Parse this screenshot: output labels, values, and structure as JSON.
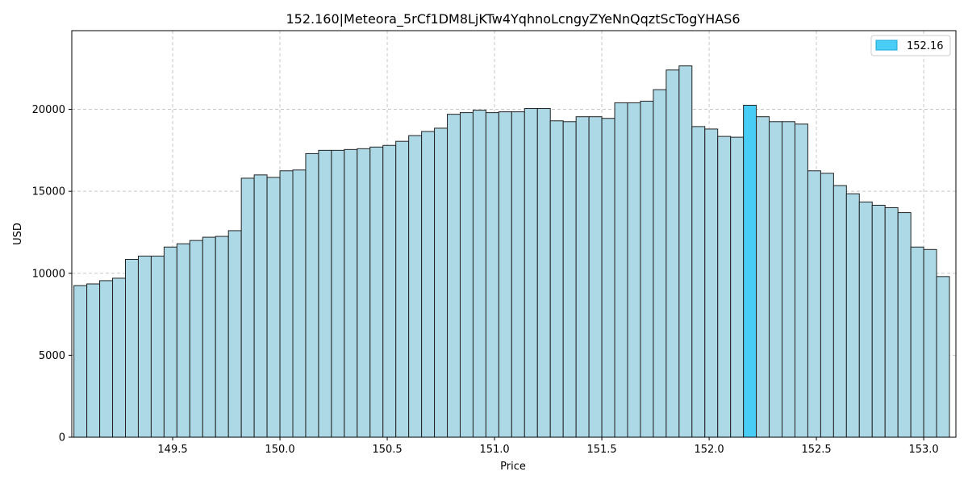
{
  "chart_data": {
    "type": "bar",
    "title": "152.160|Meteora_5rCf1DM8LjKTw4YqhnoLcngyZYeNnQqztScTogYHAS6",
    "xlabel": "Price",
    "ylabel": "USD",
    "xlim": [
      149.03,
      153.15
    ],
    "ylim": [
      0,
      24800
    ],
    "x_ticks": [
      149.5,
      150.0,
      150.5,
      151.0,
      151.5,
      152.0,
      152.5,
      153.0
    ],
    "x_tick_labels": [
      "149.5",
      "150.0",
      "150.5",
      "151.0",
      "151.5",
      "152.0",
      "152.5",
      "153.0"
    ],
    "y_ticks": [
      0,
      5000,
      10000,
      15000,
      20000
    ],
    "y_tick_labels": [
      "0",
      "5000",
      "10000",
      "15000",
      "20000"
    ],
    "grid": true,
    "bin_start": 149.04,
    "bin_width": 0.06,
    "values": [
      9250,
      9350,
      9550,
      9700,
      10850,
      11050,
      11050,
      11600,
      11800,
      12000,
      12200,
      12250,
      12600,
      15800,
      16000,
      15850,
      16250,
      16300,
      17300,
      17500,
      17500,
      17550,
      17600,
      17700,
      17800,
      18050,
      18400,
      18650,
      18850,
      19700,
      19800,
      19950,
      19800,
      19850,
      19850,
      20050,
      20050,
      19300,
      19250,
      19550,
      19550,
      19450,
      20400,
      20400,
      20500,
      21200,
      22400,
      22650,
      18950,
      18800,
      18350,
      18300,
      20250,
      19550,
      19250,
      19250,
      19100,
      16250,
      16100,
      15350,
      14850,
      14350,
      14150,
      14000,
      13700,
      11600,
      11450,
      9800
    ],
    "highlight_index": 52,
    "bar_color": "#add8e6",
    "highlight_color": "#48cdf7",
    "edge_color": "#222222",
    "legend": {
      "position": "top-right",
      "entries": [
        {
          "label": "152.16",
          "color": "#48cdf7"
        }
      ]
    }
  }
}
